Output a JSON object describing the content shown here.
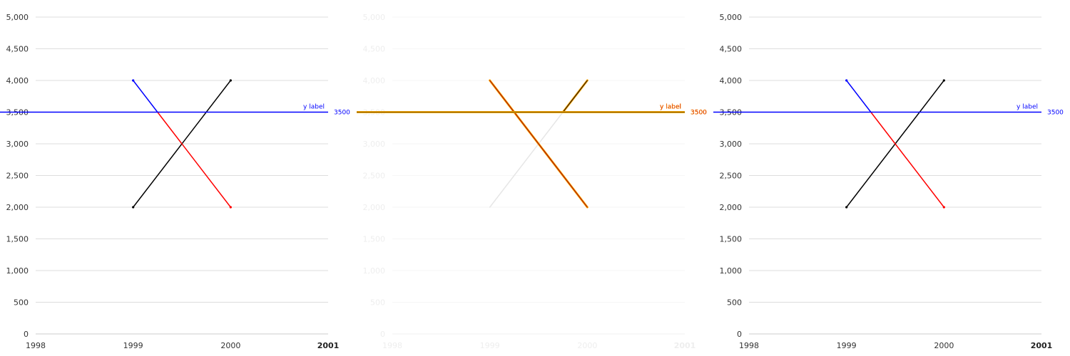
{
  "colors": {
    "grid": "#dddddd",
    "axis_line": "#cccccc",
    "tick_text": "#333333",
    "line_up": "#000000",
    "line_down_top": "#0000ff",
    "line_down_bottom": "#ff0000",
    "reference_line": "#0000ff",
    "highlight": "#ffa500",
    "highlight_text": "#cc0000",
    "dimmed": "#e6e6e6",
    "dimmed_text": "#eeeeee"
  },
  "chart_data": [
    {
      "type": "line",
      "state": "normal",
      "x_ticks": [
        "1998",
        "1999",
        "2000",
        "2001"
      ],
      "x_bold_tick": "2001",
      "xlim": [
        1998,
        2001
      ],
      "y_ticks": [
        "0",
        "500",
        "1,000",
        "1,500",
        "2,000",
        "2,500",
        "3,000",
        "3,500",
        "4,000",
        "4,500",
        "5,000"
      ],
      "ylim": [
        0,
        5000
      ],
      "grid": true,
      "series": [
        {
          "x": [
            1999,
            2000
          ],
          "y": [
            2000,
            4000
          ],
          "color": "#000000"
        },
        {
          "x": [
            1999,
            2000
          ],
          "y": [
            4000,
            2000
          ],
          "color": "#ff0000",
          "color_above_reference": "#0000ff"
        }
      ],
      "reference_line": {
        "axis": "y",
        "value": 3500,
        "label": "y label",
        "value_label": "3500",
        "color": "#0000ff"
      }
    },
    {
      "type": "line",
      "state": "highlighted",
      "x_ticks": [
        "1998",
        "1999",
        "2000",
        "2001"
      ],
      "x_bold_tick": "2001",
      "xlim": [
        1998,
        2001
      ],
      "y_ticks": [
        "0",
        "500",
        "1,000",
        "1,500",
        "2,000",
        "2,500",
        "3,000",
        "3,500",
        "4,000",
        "4,500",
        "5,000"
      ],
      "ylim": [
        0,
        5000
      ],
      "grid": true,
      "series": [
        {
          "x": [
            1999,
            2000
          ],
          "y": [
            2000,
            4000
          ],
          "color": "#000000",
          "highlighted_segment_y": [
            3500,
            4000
          ]
        },
        {
          "x": [
            1999,
            2000
          ],
          "y": [
            4000,
            2000
          ],
          "color": "#ff0000",
          "highlighted": true
        }
      ],
      "reference_line": {
        "axis": "y",
        "value": 3500,
        "label": "y label",
        "value_label": "3500",
        "color": "#0000ff",
        "highlighted": true
      }
    },
    {
      "type": "line",
      "state": "normal",
      "x_ticks": [
        "1998",
        "1999",
        "2000",
        "2001"
      ],
      "x_bold_tick": "2001",
      "xlim": [
        1998,
        2001
      ],
      "y_ticks": [
        "0",
        "500",
        "1,000",
        "1,500",
        "2,000",
        "2,500",
        "3,000",
        "3,500",
        "4,000",
        "4,500",
        "5,000"
      ],
      "ylim": [
        0,
        5000
      ],
      "grid": true,
      "series": [
        {
          "x": [
            1999,
            2000
          ],
          "y": [
            2000,
            4000
          ],
          "color": "#000000"
        },
        {
          "x": [
            1999,
            2000
          ],
          "y": [
            4000,
            2000
          ],
          "color": "#ff0000",
          "color_above_reference": "#0000ff"
        }
      ],
      "reference_line": {
        "axis": "y",
        "value": 3500,
        "label": "y label",
        "value_label": "3500",
        "color": "#0000ff"
      }
    }
  ]
}
